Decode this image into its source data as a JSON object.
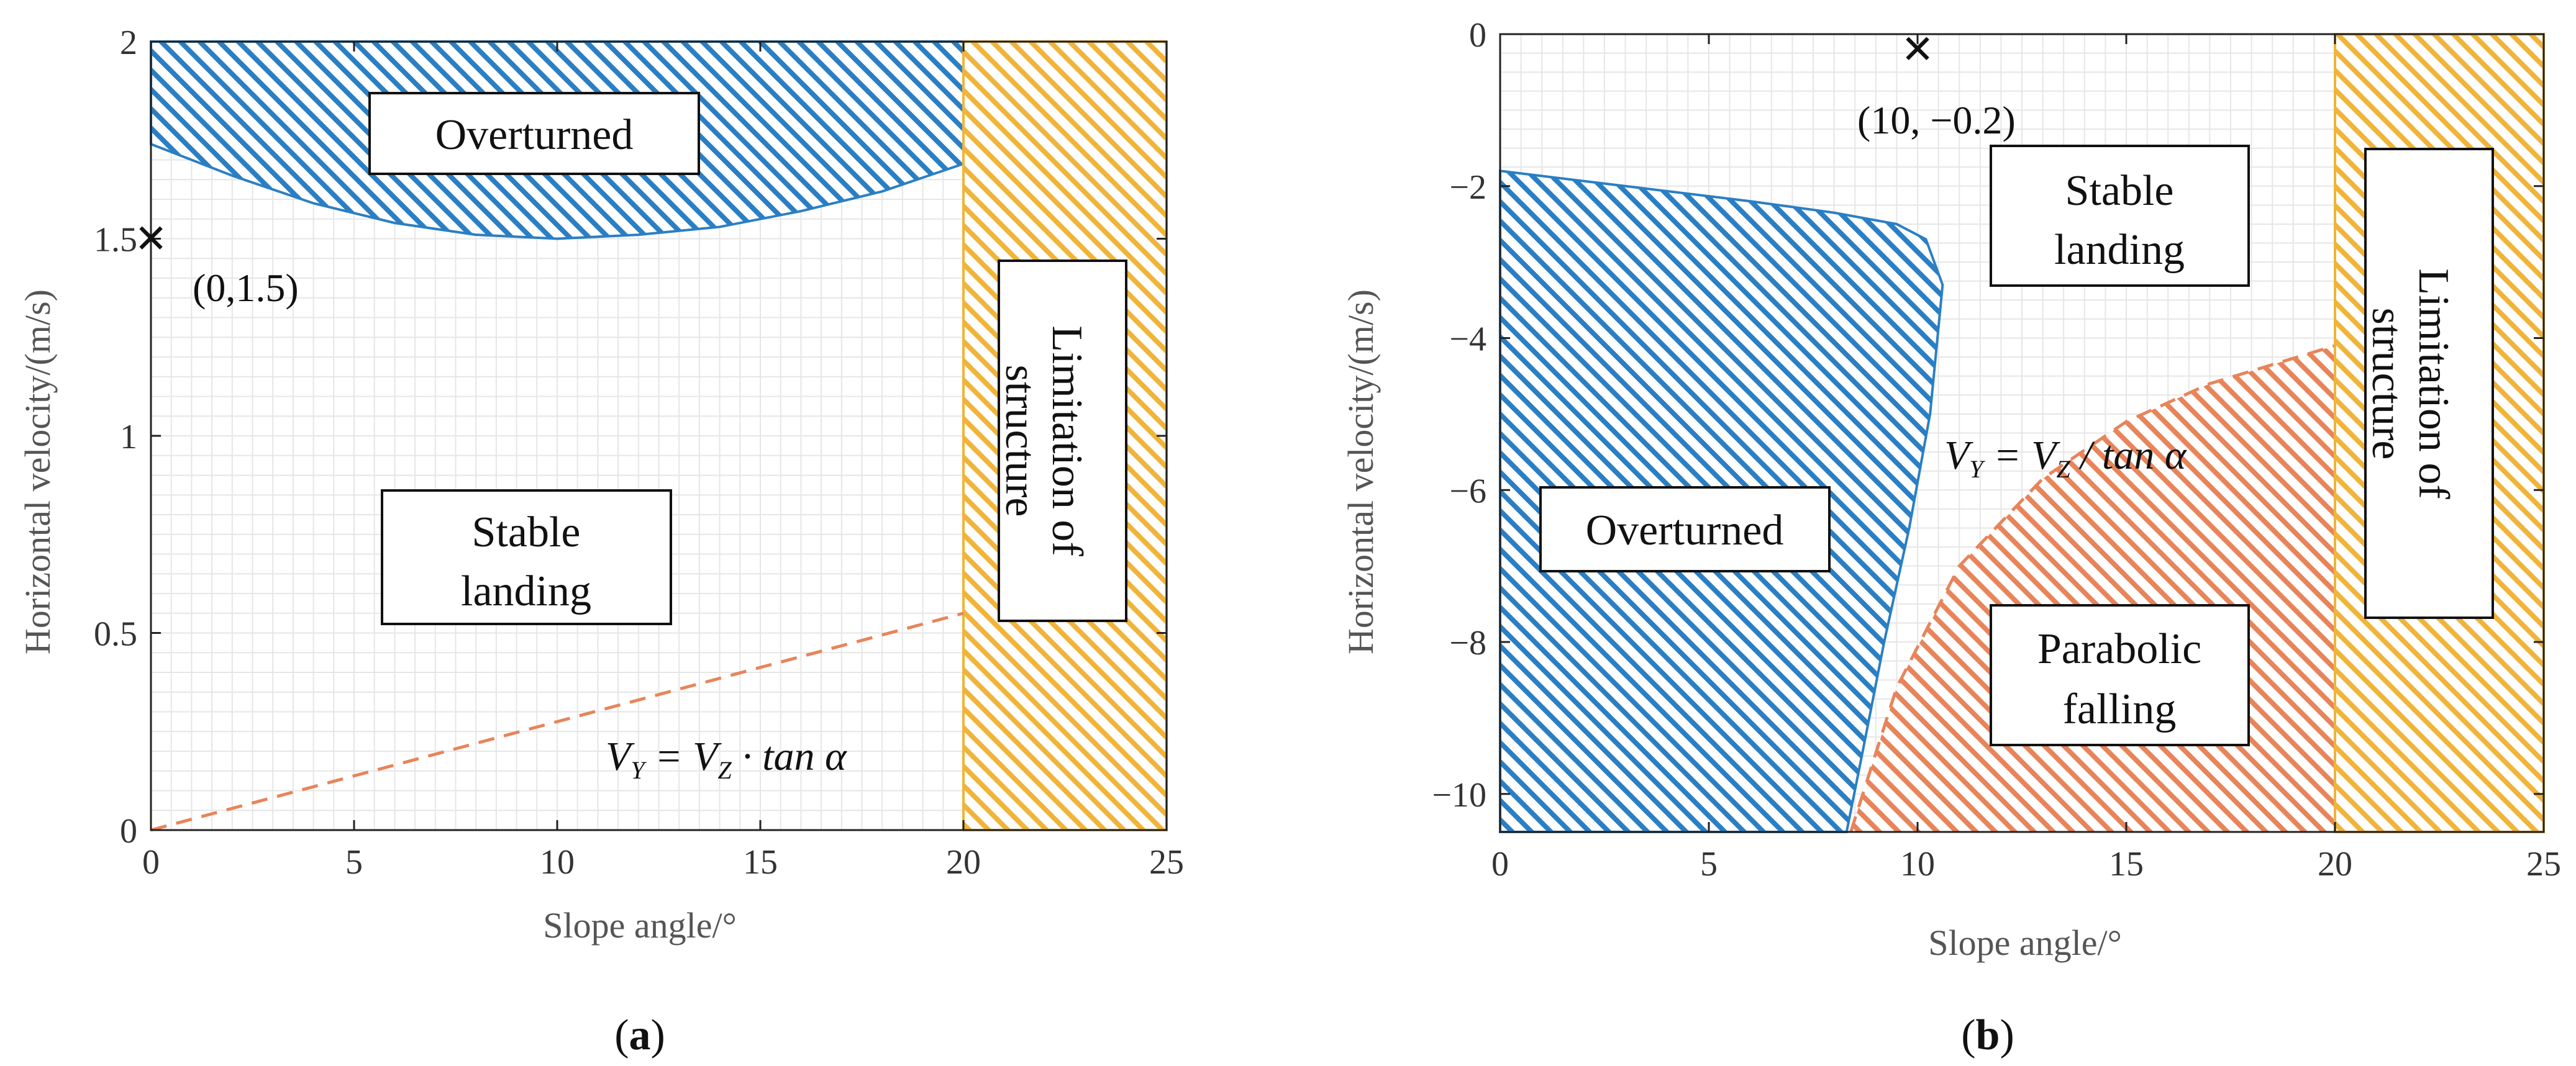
{
  "chart_data": [
    {
      "type": "area",
      "panel_label": "a",
      "panel_label_bold": "a",
      "xlabel": "Slope angle/°",
      "ylabel": "Horizontal velocity/(m/s)",
      "xlim": [
        0,
        25
      ],
      "ylim": [
        0,
        2
      ],
      "xticks": [
        "0",
        "5",
        "10",
        "15",
        "20",
        "25"
      ],
      "xtick_values": [
        0,
        5,
        10,
        15,
        20,
        25
      ],
      "yticks": [
        "0",
        "0.5",
        "1",
        "1.5",
        "2"
      ],
      "ytick_values": [
        0,
        0.5,
        1,
        1.5,
        2
      ],
      "grid": true,
      "regions": [
        {
          "name": "Overturned",
          "color": "#2a7fc4",
          "upper_limit": 2,
          "boundary": [
            [
              0,
              1.74
            ],
            [
              2,
              1.66
            ],
            [
              4,
              1.59
            ],
            [
              6,
              1.54
            ],
            [
              8,
              1.51
            ],
            [
              10,
              1.5
            ],
            [
              12,
              1.51
            ],
            [
              14,
              1.53
            ],
            [
              16,
              1.57
            ],
            [
              18,
              1.62
            ],
            [
              20,
              1.69
            ]
          ]
        },
        {
          "name": "Limitation of structure",
          "color": "#f0b43a",
          "x_range": [
            20,
            25
          ]
        }
      ],
      "dashed_line": {
        "name": "VY = VZ · tan α",
        "color": "#e8845a",
        "points": [
          [
            0,
            0
          ],
          [
            20,
            0.55
          ]
        ]
      },
      "marker": {
        "x": 0,
        "y": 1.5,
        "label": "(0,1.5)",
        "color": "#1a1aff"
      },
      "labels": {
        "overturned": "Overturned",
        "stable_line1": "Stable",
        "stable_line2": "landing",
        "limitation_line1": "Limitation of",
        "limitation_line2": "structure",
        "eq_left": "V",
        "eq_sub1": "Y",
        "eq_mid": " = V",
        "eq_sub2": "Z",
        "eq_right": " · tan α"
      }
    },
    {
      "type": "area",
      "panel_label": "b",
      "xlabel": "Slope angle/°",
      "ylabel": "Horizontal velocity/(m/s)",
      "xlim": [
        0,
        25
      ],
      "ylim": [
        -10.5,
        0
      ],
      "xticks": [
        "0",
        "5",
        "10",
        "15",
        "20",
        "25"
      ],
      "xtick_values": [
        0,
        5,
        10,
        15,
        20,
        25
      ],
      "yticks": [
        "0",
        "−2",
        "−4",
        "−6",
        "−8",
        "−10"
      ],
      "ytick_values": [
        0,
        -2,
        -4,
        -6,
        -8,
        -10
      ],
      "grid": true,
      "regions": [
        {
          "name": "Overturned",
          "color": "#2a7fc4",
          "boundary": [
            [
              0,
              -1.8
            ],
            [
              3,
              -2.0
            ],
            [
              6,
              -2.2
            ],
            [
              8,
              -2.35
            ],
            [
              9.5,
              -2.5
            ],
            [
              10.2,
              -2.7
            ],
            [
              10.6,
              -3.3
            ],
            [
              10.3,
              -5.0
            ],
            [
              9.8,
              -6.5
            ],
            [
              9.2,
              -8.0
            ],
            [
              8.7,
              -9.4
            ],
            [
              8.3,
              -10.5
            ]
          ]
        },
        {
          "name": "Parabolic falling",
          "color": "#e8845a",
          "boundary": [
            [
              8.4,
              -10.5
            ],
            [
              9.5,
              -8.6
            ],
            [
              11,
              -7.0
            ],
            [
              13,
              -5.85
            ],
            [
              15,
              -5.1
            ],
            [
              17,
              -4.6
            ],
            [
              20,
              -4.1
            ]
          ]
        },
        {
          "name": "Limitation of structure",
          "color": "#f0b43a",
          "x_range": [
            20,
            25
          ]
        }
      ],
      "dashed_line": {
        "name": "VY = VZ / tan α",
        "color": "#e8845a"
      },
      "marker": {
        "x": 10,
        "y": -0.2,
        "label": "(10, −0.2)",
        "color": "#1a1aff"
      },
      "labels": {
        "overturned": "Overturned",
        "stable_line1": "Stable",
        "stable_line2": "landing",
        "parabolic_line1": "Parabolic",
        "parabolic_line2": "falling",
        "limitation_line1": "Limitation of",
        "limitation_line2": "structure",
        "eq_left": "V",
        "eq_sub1": "Y",
        "eq_mid": " = V",
        "eq_sub2": "Z",
        "eq_right": " / tan α"
      }
    }
  ]
}
